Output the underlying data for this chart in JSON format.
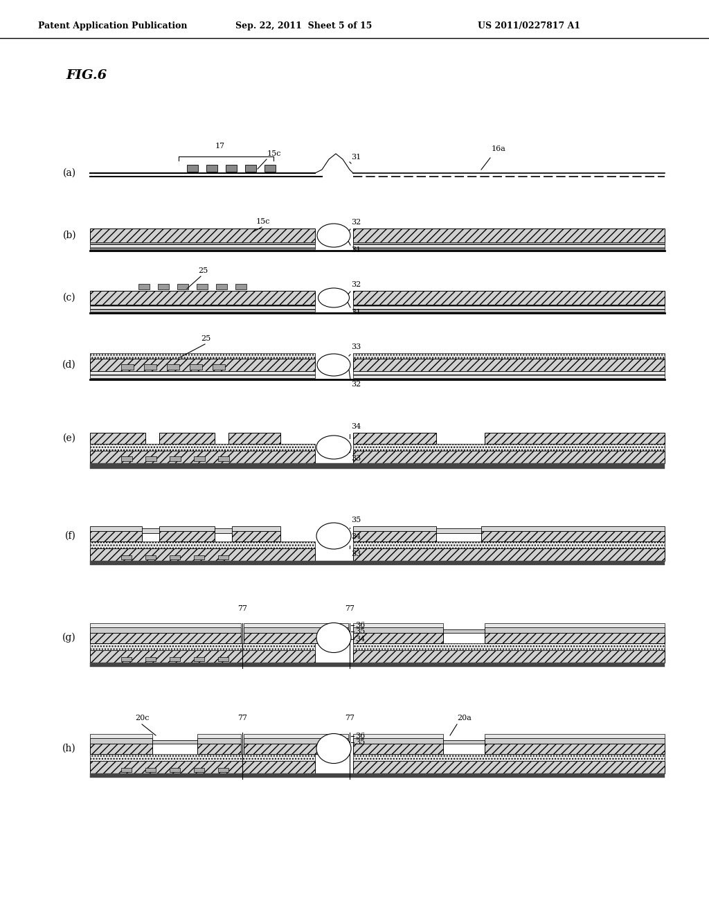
{
  "header_left": "Patent Application Publication",
  "header_mid": "Sep. 22, 2011  Sheet 5 of 15",
  "header_right": "US 2011/0227817 A1",
  "title": "FIG.6",
  "bg_color": "#ffffff"
}
